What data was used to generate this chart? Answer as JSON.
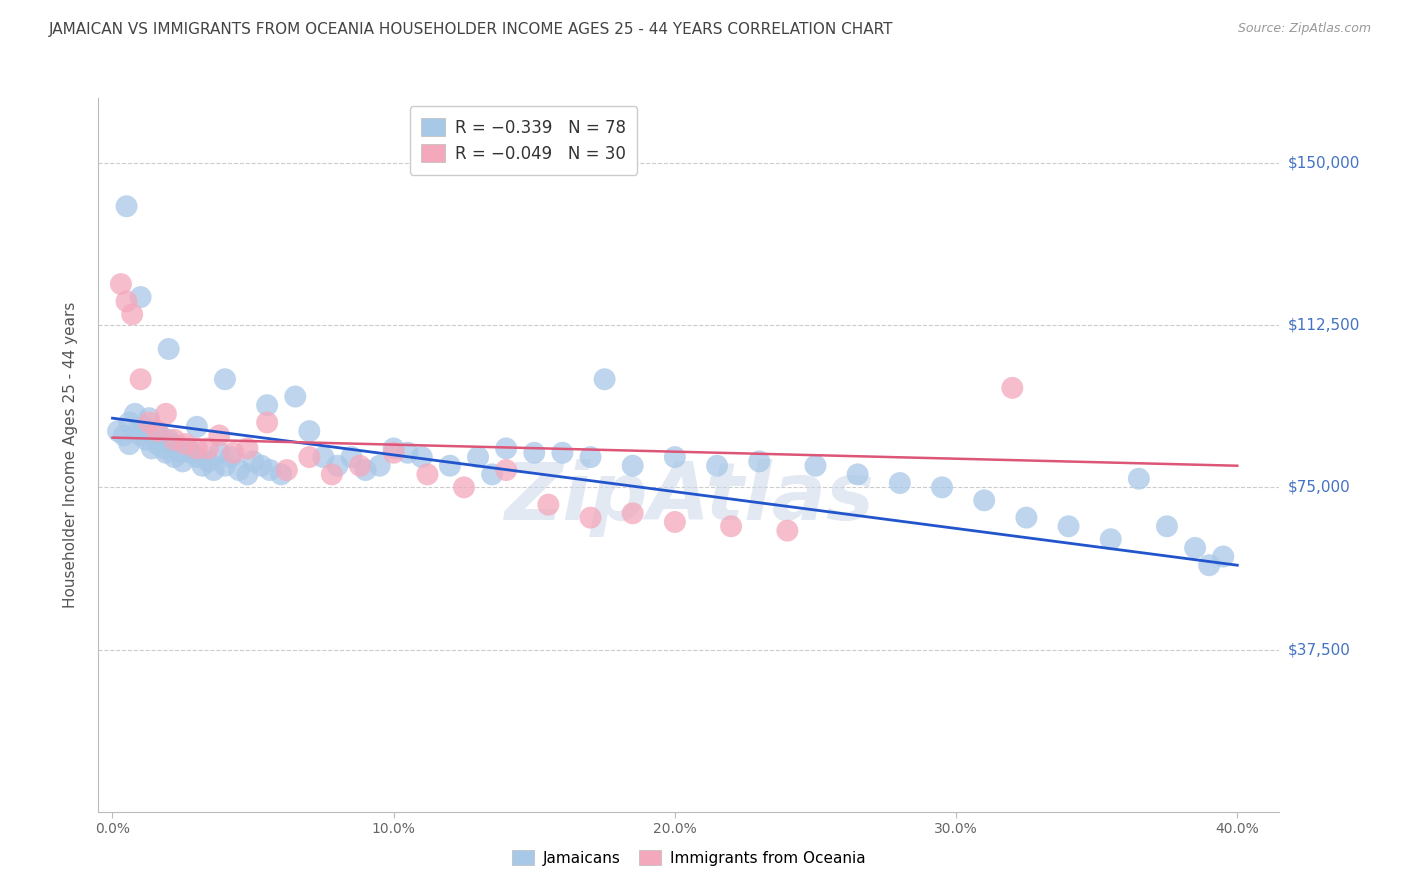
{
  "title": "JAMAICAN VS IMMIGRANTS FROM OCEANIA HOUSEHOLDER INCOME AGES 25 - 44 YEARS CORRELATION CHART",
  "source": "Source: ZipAtlas.com",
  "ylabel": "Householder Income Ages 25 - 44 years",
  "xlabel_ticks": [
    "0.0%",
    "10.0%",
    "20.0%",
    "30.0%",
    "40.0%"
  ],
  "xlabel_vals": [
    0.0,
    0.1,
    0.2,
    0.3,
    0.4
  ],
  "ytick_labels": [
    "$37,500",
    "$75,000",
    "$112,500",
    "$150,000"
  ],
  "ytick_vals": [
    37500,
    75000,
    112500,
    150000
  ],
  "ylim": [
    0,
    165000
  ],
  "xlim": [
    -0.005,
    0.415
  ],
  "blue_color": "#a8c8e8",
  "pink_color": "#f4a8bc",
  "blue_line_color": "#2255cc",
  "pink_line_color": "#dd5577",
  "background_color": "#ffffff",
  "grid_color": "#cccccc",
  "title_color": "#444444",
  "ytick_color": "#4472c4",
  "watermark": "ZipAtlas",
  "blue_scatter_x": [
    0.002,
    0.004,
    0.006,
    0.006,
    0.008,
    0.009,
    0.01,
    0.011,
    0.012,
    0.013,
    0.014,
    0.015,
    0.016,
    0.017,
    0.018,
    0.019,
    0.02,
    0.021,
    0.022,
    0.023,
    0.024,
    0.025,
    0.027,
    0.028,
    0.03,
    0.032,
    0.034,
    0.036,
    0.038,
    0.04,
    0.042,
    0.045,
    0.048,
    0.05,
    0.053,
    0.056,
    0.06,
    0.065,
    0.07,
    0.075,
    0.08,
    0.085,
    0.09,
    0.095,
    0.1,
    0.105,
    0.11,
    0.12,
    0.13,
    0.14,
    0.15,
    0.16,
    0.17,
    0.185,
    0.2,
    0.215,
    0.23,
    0.25,
    0.265,
    0.28,
    0.295,
    0.31,
    0.325,
    0.34,
    0.355,
    0.365,
    0.375,
    0.385,
    0.39,
    0.395,
    0.005,
    0.01,
    0.02,
    0.03,
    0.04,
    0.055,
    0.135,
    0.175
  ],
  "blue_scatter_y": [
    88000,
    87000,
    90000,
    85000,
    92000,
    88000,
    87000,
    89000,
    86000,
    91000,
    84000,
    88000,
    85000,
    87000,
    84000,
    83000,
    86000,
    85000,
    82000,
    84000,
    83000,
    81000,
    84000,
    83000,
    82000,
    80000,
    81000,
    79000,
    83000,
    80000,
    82000,
    79000,
    78000,
    81000,
    80000,
    79000,
    78000,
    96000,
    88000,
    82000,
    80000,
    82000,
    79000,
    80000,
    84000,
    83000,
    82000,
    80000,
    82000,
    84000,
    83000,
    83000,
    82000,
    80000,
    82000,
    80000,
    81000,
    80000,
    78000,
    76000,
    75000,
    72000,
    68000,
    66000,
    63000,
    77000,
    66000,
    61000,
    57000,
    59000,
    140000,
    119000,
    107000,
    89000,
    100000,
    94000,
    78000,
    100000
  ],
  "pink_scatter_x": [
    0.003,
    0.005,
    0.007,
    0.01,
    0.013,
    0.016,
    0.019,
    0.022,
    0.026,
    0.03,
    0.034,
    0.038,
    0.043,
    0.048,
    0.055,
    0.062,
    0.07,
    0.078,
    0.088,
    0.1,
    0.112,
    0.125,
    0.14,
    0.155,
    0.17,
    0.185,
    0.2,
    0.22,
    0.24,
    0.32
  ],
  "pink_scatter_y": [
    122000,
    118000,
    115000,
    100000,
    90000,
    88000,
    92000,
    86000,
    85000,
    84000,
    84000,
    87000,
    83000,
    84000,
    90000,
    79000,
    82000,
    78000,
    80000,
    83000,
    78000,
    75000,
    79000,
    71000,
    68000,
    69000,
    67000,
    66000,
    65000,
    98000
  ],
  "blue_line_x": [
    0.0,
    0.4
  ],
  "blue_line_y": [
    91000,
    57000
  ],
  "pink_line_x": [
    0.0,
    0.4
  ],
  "pink_line_y": [
    86500,
    80000
  ]
}
